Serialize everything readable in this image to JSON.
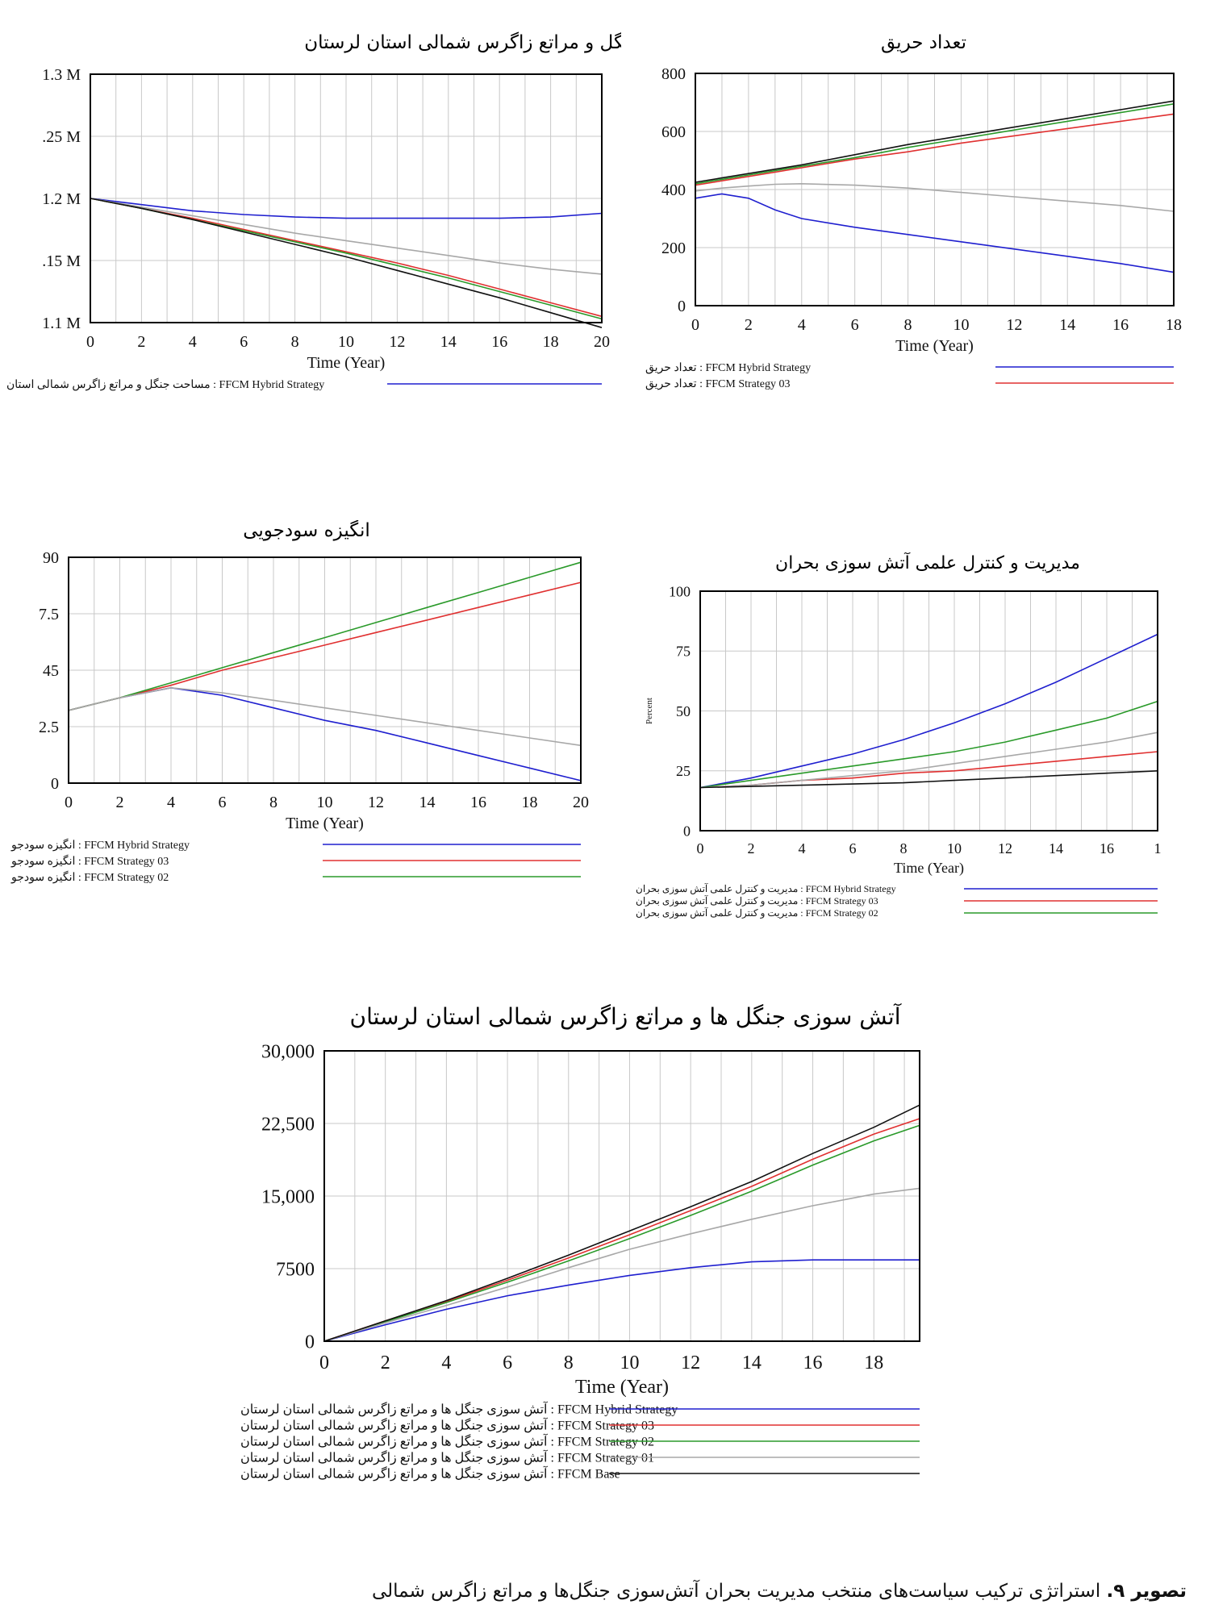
{
  "caption": {
    "label": "تصویر ۹.",
    "text": "استراتژی ترکیب سیاست‌های منتخب مدیریت بحران آتش‌سوزی جنگل‌ها و مراتع زاگرس شمالی"
  },
  "colors": {
    "FFCM Hybrid Strategy": "#1f1fcf",
    "FFCM Strategy 03": "#e03030",
    "FFCM Strategy 02": "#2a9a2a",
    "FFCM Strategy 01": "#a8a8a8",
    "FFCM Base": "#111111"
  },
  "chart_data": [
    {
      "id": "c1",
      "type": "line",
      "title": "مساحت جنگل و مراتع زاگرس شمالی استان لرستان",
      "xlabel": "Time (Year)",
      "ylabel": "",
      "xlim": [
        0,
        20
      ],
      "ylim": [
        1.1,
        1.3
      ],
      "xticks": [
        "0",
        "2",
        "4",
        "6",
        "8",
        "10",
        "12",
        "14",
        "16",
        "18",
        "20"
      ],
      "yticks": [
        {
          "v": 1.3,
          "t": "1.3 M"
        },
        {
          "v": 1.25,
          "t": ".25 M"
        },
        {
          "v": 1.2,
          "t": "1.2 M"
        },
        {
          "v": 1.15,
          "t": ".15 M"
        },
        {
          "v": 1.1,
          "t": "1.1 M"
        }
      ],
      "x": [
        0,
        2,
        4,
        6,
        8,
        10,
        12,
        14,
        16,
        18,
        20
      ],
      "series": [
        {
          "name": "FFCM Hybrid Strategy",
          "values": [
            1.2,
            1.195,
            1.19,
            1.187,
            1.185,
            1.184,
            1.184,
            1.184,
            1.184,
            1.185,
            1.188
          ]
        },
        {
          "name": "FFCM Strategy 03",
          "values": [
            1.2,
            1.192,
            1.184,
            1.175,
            1.166,
            1.157,
            1.148,
            1.138,
            1.127,
            1.116,
            1.105
          ]
        },
        {
          "name": "FFCM Strategy 02",
          "values": [
            1.2,
            1.192,
            1.183,
            1.174,
            1.165,
            1.156,
            1.146,
            1.136,
            1.125,
            1.114,
            1.103
          ]
        },
        {
          "name": "FFCM Strategy 01",
          "values": [
            1.2,
            1.193,
            1.186,
            1.179,
            1.172,
            1.166,
            1.16,
            1.154,
            1.148,
            1.143,
            1.139
          ]
        },
        {
          "name": "FFCM Base",
          "values": [
            1.2,
            1.192,
            1.183,
            1.173,
            1.163,
            1.153,
            1.142,
            1.131,
            1.12,
            1.108,
            1.096
          ]
        }
      ],
      "legend": [
        {
          "label": "مساحت جنگل و مراتع زاگرس شمالی استان : FFCM Hybrid Strategy",
          "series": "FFCM Hybrid Strategy"
        }
      ]
    },
    {
      "id": "c2",
      "type": "line",
      "title": "تعداد حریق",
      "xlabel": "Time (Year)",
      "ylabel": "",
      "xlim": [
        0,
        18
      ],
      "ylim": [
        0,
        800
      ],
      "xticks": [
        "0",
        "2",
        "4",
        "6",
        "8",
        "10",
        "12",
        "14",
        "16",
        "18"
      ],
      "yticks": [
        {
          "v": 800,
          "t": "800"
        },
        {
          "v": 600,
          "t": "600"
        },
        {
          "v": 400,
          "t": "400"
        },
        {
          "v": 200,
          "t": "200"
        },
        {
          "v": 0,
          "t": "0"
        }
      ],
      "x": [
        0,
        1,
        2,
        3,
        4,
        6,
        8,
        10,
        12,
        14,
        16,
        18
      ],
      "series": [
        {
          "name": "FFCM Hybrid Strategy",
          "values": [
            370,
            385,
            370,
            330,
            300,
            270,
            245,
            220,
            195,
            170,
            145,
            115
          ]
        },
        {
          "name": "FFCM Strategy 03",
          "values": [
            415,
            430,
            445,
            460,
            475,
            505,
            530,
            560,
            585,
            610,
            635,
            660
          ]
        },
        {
          "name": "FFCM Strategy 02",
          "values": [
            420,
            435,
            450,
            465,
            480,
            510,
            545,
            575,
            605,
            635,
            665,
            695
          ]
        },
        {
          "name": "FFCM Strategy 01",
          "values": [
            395,
            405,
            412,
            418,
            420,
            415,
            405,
            390,
            375,
            360,
            345,
            325
          ]
        },
        {
          "name": "FFCM Base",
          "values": [
            425,
            440,
            455,
            470,
            485,
            520,
            555,
            585,
            615,
            645,
            675,
            705
          ]
        }
      ],
      "legend": [
        {
          "label": "تعداد حریق : FFCM Hybrid Strategy",
          "series": "FFCM Hybrid Strategy"
        },
        {
          "label": "تعداد حریق : FFCM Strategy 03",
          "series": "FFCM Strategy 03"
        }
      ]
    },
    {
      "id": "c3",
      "type": "line",
      "title": "انگیزه سودجویی",
      "xlabel": "Time (Year)",
      "ylabel": "",
      "xlim": [
        0,
        20
      ],
      "ylim": [
        0,
        90
      ],
      "xticks": [
        "0",
        "2",
        "4",
        "6",
        "8",
        "10",
        "12",
        "14",
        "16",
        "18",
        "20"
      ],
      "yticks": [
        {
          "v": 90,
          "t": "90"
        },
        {
          "v": 67.5,
          "t": "7.5"
        },
        {
          "v": 45,
          "t": "45"
        },
        {
          "v": 22.5,
          "t": "2.5"
        },
        {
          "v": 0,
          "t": "0"
        }
      ],
      "x": [
        0,
        2,
        4,
        6,
        8,
        10,
        12,
        14,
        16,
        18,
        20
      ],
      "series": [
        {
          "name": "FFCM Hybrid Strategy",
          "values": [
            29,
            34,
            38,
            35,
            30,
            25,
            21,
            16,
            11,
            6,
            1
          ]
        },
        {
          "name": "FFCM Strategy 03",
          "values": [
            29,
            34,
            39,
            45,
            50,
            55,
            60,
            65,
            70,
            75,
            80
          ]
        },
        {
          "name": "FFCM Strategy 02",
          "values": [
            29,
            34,
            40,
            46,
            52,
            58,
            64,
            70,
            76,
            82,
            88
          ]
        },
        {
          "name": "FFCM Strategy 01",
          "values": [
            29,
            34,
            38,
            36,
            33,
            30,
            27,
            24,
            21,
            18,
            15
          ]
        }
      ],
      "legend": [
        {
          "label": "انگیزه سودجو : FFCM Hybrid Strategy",
          "series": "FFCM Hybrid Strategy"
        },
        {
          "label": "انگیزه سودجو : FFCM Strategy 03",
          "series": "FFCM Strategy 03"
        },
        {
          "label": "انگیزه سودجو : FFCM Strategy 02",
          "series": "FFCM Strategy 02"
        }
      ]
    },
    {
      "id": "c4",
      "type": "line",
      "title": "مدیریت و کنترل علمی آتش سوزی بحران",
      "xlabel": "Time (Year)",
      "ylabel": "Percent",
      "xlim": [
        0,
        18
      ],
      "ylim": [
        0,
        100
      ],
      "xticks": [
        "0",
        "2",
        "4",
        "6",
        "8",
        "10",
        "12",
        "14",
        "16",
        "1"
      ],
      "yticks": [
        {
          "v": 100,
          "t": "100"
        },
        {
          "v": 75,
          "t": "75"
        },
        {
          "v": 50,
          "t": "50"
        },
        {
          "v": 25,
          "t": "25"
        },
        {
          "v": 0,
          "t": "0"
        }
      ],
      "x": [
        0,
        2,
        4,
        6,
        8,
        10,
        12,
        14,
        16,
        18
      ],
      "series": [
        {
          "name": "FFCM Hybrid Strategy",
          "values": [
            18,
            22,
            27,
            32,
            38,
            45,
            53,
            62,
            72,
            82
          ]
        },
        {
          "name": "FFCM Strategy 03",
          "values": [
            18,
            19,
            21,
            22,
            24,
            25,
            27,
            29,
            31,
            33
          ]
        },
        {
          "name": "FFCM Strategy 02",
          "values": [
            18,
            21,
            24,
            27,
            30,
            33,
            37,
            42,
            47,
            54
          ]
        },
        {
          "name": "FFCM Strategy 01",
          "values": [
            18,
            19,
            21,
            23,
            25,
            28,
            31,
            34,
            37,
            41
          ]
        },
        {
          "name": "FFCM Base",
          "values": [
            18,
            18.5,
            19,
            19.5,
            20,
            21,
            22,
            23,
            24,
            25
          ]
        }
      ],
      "legend": [
        {
          "label": "مدیریت و کنترل علمی آتش سوزی بحران : FFCM Hybrid Strategy",
          "series": "FFCM Hybrid Strategy"
        },
        {
          "label": "مدیریت و کنترل علمی آتش سوزی بحران : FFCM Strategy 03",
          "series": "FFCM Strategy 03"
        },
        {
          "label": "مدیریت و کنترل علمی آتش سوزی بحران : FFCM Strategy 02",
          "series": "FFCM Strategy 02"
        }
      ]
    },
    {
      "id": "c5",
      "type": "line",
      "title": "آتش سوزی جنگل ها و مراتع زاگرس شمالی استان لرستان",
      "xlabel": "Time (Year)",
      "ylabel": "",
      "xlim": [
        0,
        19.5
      ],
      "ylim": [
        0,
        30000
      ],
      "xticks": [
        "0",
        "2",
        "4",
        "6",
        "8",
        "10",
        "12",
        "14",
        "16",
        "18"
      ],
      "yticks": [
        {
          "v": 30000,
          "t": "30,000"
        },
        {
          "v": 22500,
          "t": "22,500"
        },
        {
          "v": 15000,
          "t": "15,000"
        },
        {
          "v": 7500,
          "t": "7500"
        },
        {
          "v": 0,
          "t": "0"
        }
      ],
      "x": [
        0,
        2,
        4,
        6,
        8,
        10,
        12,
        14,
        16,
        18,
        19.5
      ],
      "series": [
        {
          "name": "FFCM Hybrid Strategy",
          "values": [
            0,
            1700,
            3300,
            4700,
            5800,
            6800,
            7600,
            8200,
            8400,
            8400,
            8400
          ]
        },
        {
          "name": "FFCM Strategy 03",
          "values": [
            0,
            2100,
            4100,
            6300,
            8600,
            11000,
            13500,
            16000,
            18800,
            21400,
            23000
          ]
        },
        {
          "name": "FFCM Strategy 02",
          "values": [
            0,
            2000,
            4000,
            6100,
            8300,
            10600,
            13000,
            15500,
            18200,
            20700,
            22300
          ]
        },
        {
          "name": "FFCM Strategy 01",
          "values": [
            0,
            1900,
            3700,
            5600,
            7600,
            9500,
            11100,
            12600,
            14000,
            15200,
            15800
          ]
        },
        {
          "name": "FFCM Base",
          "values": [
            0,
            2100,
            4200,
            6500,
            8900,
            11400,
            13900,
            16500,
            19400,
            22100,
            24400
          ]
        }
      ],
      "legend": [
        {
          "label": "آتش سوزی جنگل ها و مراتع زاگرس شمالی استان لرستان : FFCM Hybrid Strategy",
          "series": "FFCM Hybrid Strategy"
        },
        {
          "label": "آتش سوزی جنگل ها و مراتع زاگرس شمالی استان لرستان : FFCM Strategy 03",
          "series": "FFCM Strategy 03"
        },
        {
          "label": "آتش سوزی جنگل ها و مراتع زاگرس شمالی استان لرستان : FFCM Strategy 02",
          "series": "FFCM Strategy 02"
        },
        {
          "label": "آتش سوزی جنگل ها و مراتع زاگرس شمالی استان لرستان : FFCM Strategy 01",
          "series": "FFCM Strategy 01"
        },
        {
          "label": "آتش سوزی جنگل ها و مراتع زاگرس شمالی استان لرستان : FFCM Base",
          "series": "FFCM Base"
        }
      ]
    }
  ]
}
